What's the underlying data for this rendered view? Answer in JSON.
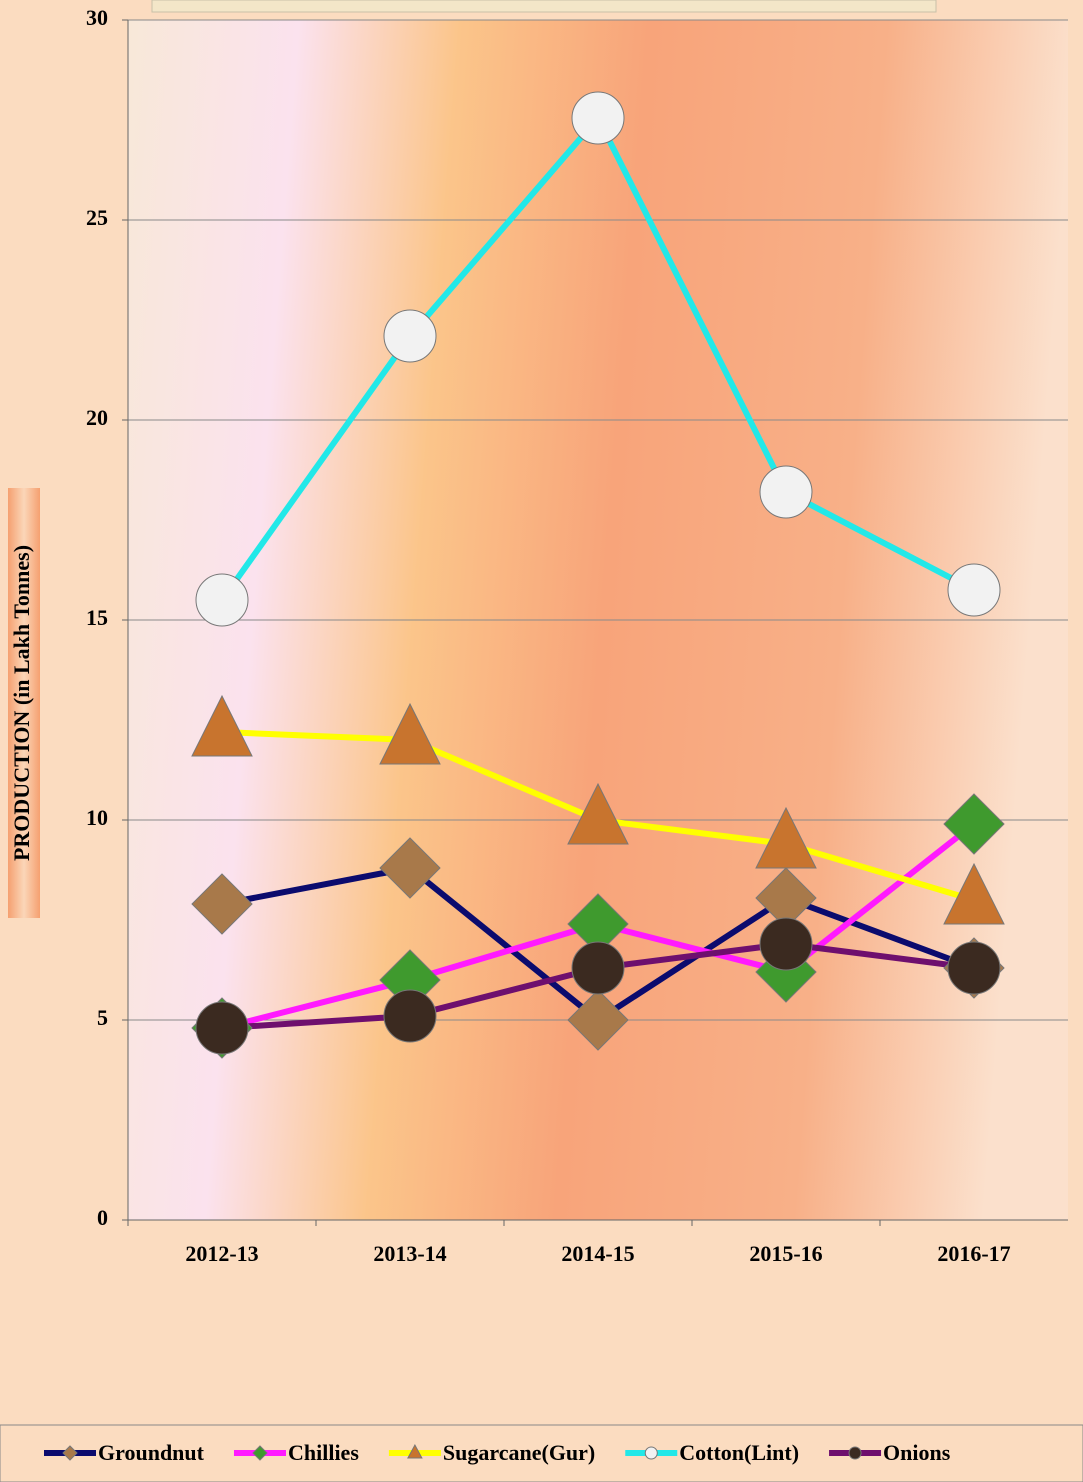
{
  "chart_data": {
    "type": "line",
    "y_label": "PRODUCTION (in Lakh Tonnes)",
    "categories": [
      "2012-13",
      "2013-14",
      "2014-15",
      "2015-16",
      "2016-17"
    ],
    "series": [
      {
        "name": "Groundnut",
        "color": "#0b0b6e",
        "marker": "diamond",
        "marker_color": "#a8794a",
        "values": [
          7.9,
          8.8,
          5.0,
          8.05,
          6.3
        ]
      },
      {
        "name": "Chillies",
        "color": "#ff1aff",
        "marker": "diamond",
        "marker_color": "#3f9a2e",
        "values": [
          4.8,
          6.0,
          7.4,
          6.2,
          9.9
        ]
      },
      {
        "name": "Sugarcane(Gur)",
        "color": "#ffff00",
        "marker": "triangle",
        "marker_color": "#c8742e",
        "values": [
          12.2,
          12.0,
          10.0,
          9.4,
          8.0
        ]
      },
      {
        "name": "Cotton(Lint)",
        "color": "#22e8e8",
        "marker": "circle",
        "marker_color": "#f2f2f2",
        "values": [
          15.5,
          22.1,
          27.55,
          18.2,
          15.75
        ]
      },
      {
        "name": "Onions",
        "color": "#6e0f6e",
        "marker": "circle",
        "marker_color": "#3b2a20",
        "values": [
          4.8,
          5.1,
          6.3,
          6.9,
          6.3
        ]
      }
    ],
    "ylim": [
      0,
      30
    ],
    "yticks": [
      0,
      5,
      10,
      15,
      20,
      25,
      30
    ],
    "grid": true
  }
}
